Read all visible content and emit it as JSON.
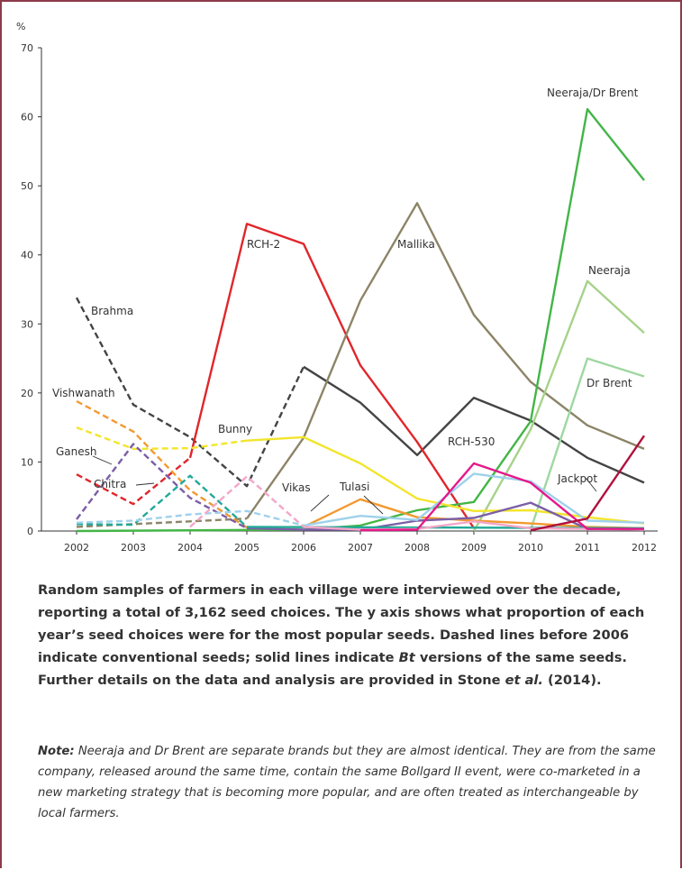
{
  "chart_data": {
    "type": "line",
    "ylabel": "%",
    "ylim": [
      0,
      70
    ],
    "yticks": [
      "0",
      "10",
      "20",
      "30",
      "40",
      "50",
      "60",
      "70"
    ],
    "x": [
      "2002",
      "2003",
      "2004",
      "2005",
      "2006",
      "2007",
      "2008",
      "2009",
      "2010",
      "2011",
      "2012"
    ],
    "series": [
      {
        "name": "Brahma",
        "color": "#444444",
        "segments": [
          {
            "dashed": true,
            "points": [
              [
                2002,
                33.8
              ],
              [
                2003,
                18.3
              ],
              [
                2004,
                13.6
              ],
              [
                2005,
                6.5
              ],
              [
                2006,
                23.8
              ]
            ]
          },
          {
            "dashed": false,
            "points": [
              [
                2006,
                23.8
              ],
              [
                2007,
                18.6
              ],
              [
                2008,
                11.0
              ],
              [
                2009,
                19.3
              ],
              [
                2010,
                16.0
              ],
              [
                2011,
                10.6
              ],
              [
                2012,
                7.0
              ]
            ]
          }
        ]
      },
      {
        "name": "RCH-2",
        "color": "#e0262b",
        "segments": [
          {
            "dashed": true,
            "points": [
              [
                2002,
                8.2
              ],
              [
                2003,
                3.9
              ],
              [
                2004,
                10.6
              ]
            ]
          },
          {
            "dashed": false,
            "points": [
              [
                2004,
                10.6
              ],
              [
                2005,
                44.5
              ],
              [
                2006,
                41.6
              ],
              [
                2007,
                24.0
              ],
              [
                2008,
                12.9
              ],
              [
                2009,
                0.4
              ]
            ]
          }
        ]
      },
      {
        "name": "Mallika",
        "color": "#8c8467",
        "segments": [
          {
            "dashed": true,
            "points": [
              [
                2002,
                0.6
              ],
              [
                2003,
                1.0
              ],
              [
                2004,
                1.4
              ],
              [
                2005,
                1.8
              ]
            ]
          },
          {
            "dashed": false,
            "points": [
              [
                2005,
                1.8
              ],
              [
                2006,
                13.5
              ],
              [
                2007,
                33.4
              ],
              [
                2008,
                47.5
              ],
              [
                2009,
                31.3
              ],
              [
                2010,
                21.6
              ],
              [
                2011,
                15.3
              ],
              [
                2012,
                11.9
              ]
            ]
          }
        ]
      },
      {
        "name": "Neeraja/Dr Brent",
        "color": "#43b546",
        "segments": [
          {
            "dashed": false,
            "points": [
              [
                2002,
                0.0
              ],
              [
                2006,
                0.2
              ],
              [
                2007,
                0.8
              ],
              [
                2008,
                3.0
              ],
              [
                2009,
                4.2
              ],
              [
                2010,
                15.9
              ],
              [
                2011,
                61.1
              ],
              [
                2012,
                50.8
              ]
            ]
          }
        ]
      },
      {
        "name": "Neeraja",
        "color": "#a6d28a",
        "segments": [
          {
            "dashed": false,
            "points": [
              [
                2009,
                0.0
              ],
              [
                2010,
                14.7
              ],
              [
                2011,
                36.2
              ],
              [
                2012,
                28.7
              ]
            ]
          }
        ]
      },
      {
        "name": "Dr Brent",
        "color": "#9ed7a0",
        "segments": [
          {
            "dashed": false,
            "points": [
              [
                2010,
                0.2
              ],
              [
                2011,
                25.0
              ],
              [
                2012,
                22.4
              ]
            ]
          }
        ]
      },
      {
        "name": "Bunny",
        "color": "#f2e52c",
        "segments": [
          {
            "dashed": true,
            "points": [
              [
                2002,
                15.0
              ],
              [
                2003,
                11.9
              ],
              [
                2004,
                12.0
              ],
              [
                2005,
                13.1
              ]
            ]
          },
          {
            "dashed": false,
            "points": [
              [
                2005,
                13.1
              ],
              [
                2006,
                13.6
              ],
              [
                2007,
                9.8
              ],
              [
                2008,
                4.7
              ],
              [
                2009,
                2.9
              ],
              [
                2010,
                3.0
              ],
              [
                2011,
                2.0
              ],
              [
                2012,
                1.1
              ]
            ]
          }
        ]
      },
      {
        "name": "Vishwanath",
        "color": "#f29a31",
        "segments": [
          {
            "dashed": true,
            "points": [
              [
                2002,
                18.8
              ],
              [
                2003,
                14.4
              ],
              [
                2004,
                5.9
              ],
              [
                2005,
                0.5
              ]
            ]
          },
          {
            "dashed": false,
            "points": [
              [
                2005,
                0.5
              ],
              [
                2006,
                0.6
              ],
              [
                2007,
                4.6
              ],
              [
                2008,
                2.0
              ],
              [
                2009,
                1.5
              ],
              [
                2010,
                1.1
              ],
              [
                2011,
                0.6
              ],
              [
                2012,
                0.4
              ]
            ]
          }
        ]
      },
      {
        "name": "Ganesh",
        "color": "#7b5ea7",
        "segments": [
          {
            "dashed": true,
            "points": [
              [
                2002,
                1.7
              ],
              [
                2003,
                12.6
              ],
              [
                2004,
                4.8
              ],
              [
                2005,
                0.4
              ]
            ]
          },
          {
            "dashed": false,
            "points": [
              [
                2005,
                0.4
              ],
              [
                2006,
                0.2
              ],
              [
                2007,
                0.2
              ],
              [
                2008,
                1.5
              ],
              [
                2009,
                1.9
              ],
              [
                2010,
                4.1
              ],
              [
                2011,
                0.3
              ],
              [
                2012,
                0.3
              ]
            ]
          }
        ]
      },
      {
        "name": "Chitra",
        "color": "#23a999",
        "segments": [
          {
            "dashed": true,
            "points": [
              [
                2002,
                1.0
              ],
              [
                2003,
                0.9
              ],
              [
                2004,
                8.0
              ],
              [
                2005,
                0.6
              ]
            ]
          },
          {
            "dashed": false,
            "points": [
              [
                2005,
                0.6
              ],
              [
                2012,
                0.4
              ]
            ]
          }
        ]
      },
      {
        "name": "Vikas",
        "color": "#9fd1ec",
        "segments": [
          {
            "dashed": true,
            "points": [
              [
                2002,
                1.2
              ],
              [
                2003,
                1.5
              ],
              [
                2004,
                2.4
              ],
              [
                2005,
                2.9
              ],
              [
                2006,
                0.8
              ]
            ]
          },
          {
            "dashed": false,
            "points": [
              [
                2006,
                0.8
              ],
              [
                2007,
                2.2
              ],
              [
                2008,
                1.6
              ],
              [
                2009,
                8.3
              ],
              [
                2010,
                7.2
              ],
              [
                2011,
                1.5
              ],
              [
                2012,
                1.2
              ]
            ]
          }
        ]
      },
      {
        "name": "Tulasi",
        "color": "#f4a6c8",
        "segments": [
          {
            "dashed": true,
            "points": [
              [
                2004,
                0.6
              ],
              [
                2005,
                7.9
              ],
              [
                2006,
                0.6
              ]
            ]
          },
          {
            "dashed": false,
            "points": [
              [
                2006,
                0.6
              ],
              [
                2007,
                0.2
              ],
              [
                2008,
                0.3
              ],
              [
                2009,
                1.4
              ],
              [
                2010,
                0.4
              ],
              [
                2012,
                0.2
              ]
            ]
          }
        ]
      },
      {
        "name": "RCH-530",
        "color": "#e5188b",
        "segments": [
          {
            "dashed": false,
            "points": [
              [
                2007,
                0.1
              ],
              [
                2008,
                0.2
              ],
              [
                2009,
                9.8
              ],
              [
                2010,
                7.0
              ],
              [
                2011,
                0.3
              ],
              [
                2012,
                0.3
              ]
            ]
          }
        ]
      },
      {
        "name": "Jackpot",
        "color": "#b0123e",
        "segments": [
          {
            "dashed": false,
            "points": [
              [
                2010,
                0.1
              ],
              [
                2011,
                1.8
              ],
              [
                2012,
                13.8
              ]
            ]
          }
        ]
      }
    ],
    "annotations": [
      {
        "text": "Brahma"
      },
      {
        "text": "RCH-2"
      },
      {
        "text": "Mallika"
      },
      {
        "text": "Neeraja/Dr Brent"
      },
      {
        "text": "Neeraja"
      },
      {
        "text": "Dr Brent"
      },
      {
        "text": "Vishwanath"
      },
      {
        "text": "Bunny"
      },
      {
        "text": "Ganesh"
      },
      {
        "text": "Chitra"
      },
      {
        "text": "Vikas"
      },
      {
        "text": "Tulasi"
      },
      {
        "text": "RCH-530"
      },
      {
        "text": "Jackpot"
      }
    ]
  },
  "caption": {
    "part1": "Random samples of farmers in each village were interviewed over the decade, reporting a total of 3,162 seed choices. The y axis shows what proportion of each year’s seed choices were for the most popular seeds. Dashed lines before 2006 indicate conventional seeds; solid lines indicate ",
    "bt": "Bt",
    "part2": " versions of the same seeds. Further details on the data and analysis are provided in Stone ",
    "etal": "et al.",
    "part3": " (2014)."
  },
  "note": {
    "label": "Note:",
    "text": " Neeraja and Dr Brent are separate brands but they are almost identical. They are from the same company, released around the same time, contain the same Bollgard II event, were co-marketed in a new marketing strategy that is becoming more popular, and are often treated as interchangeable by local farmers."
  }
}
